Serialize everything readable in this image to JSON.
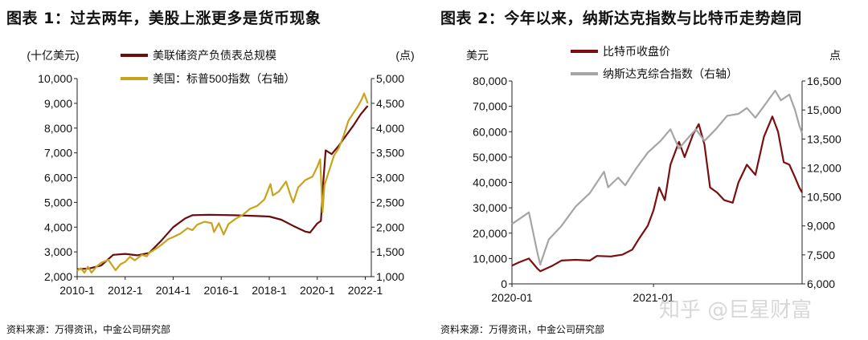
{
  "chart_data": [
    {
      "type": "line",
      "title": "图表 1：过去两年，美股上涨更多是货币现象",
      "source": "资料来源：万得资讯，中金公司研究部",
      "left_unit": "(十亿美元)",
      "right_unit": "(点)",
      "ylim_left": [
        2000,
        10000
      ],
      "yticks_left": [
        "2,000",
        "3,000",
        "4,000",
        "5,000",
        "6,000",
        "7,000",
        "8,000",
        "9,000",
        "10,000"
      ],
      "ylim_right": [
        1000,
        5000
      ],
      "yticks_right": [
        "1,000",
        "1,500",
        "2,000",
        "2,500",
        "3,000",
        "3,500",
        "4,000",
        "4,500",
        "5,000"
      ],
      "xlim": [
        2010.0,
        2022.25
      ],
      "xticks": [
        "2010-1",
        "2012-1",
        "2014-1",
        "2016-1",
        "2018-1",
        "2020-1",
        "2022-1"
      ],
      "series": [
        {
          "name": "美联储资产负债表总规模",
          "axis": "left",
          "color": "#6b0d0d",
          "points": [
            [
              2010.0,
              2300
            ],
            [
              2010.5,
              2330
            ],
            [
              2011.0,
              2450
            ],
            [
              2011.5,
              2880
            ],
            [
              2012.0,
              2920
            ],
            [
              2012.5,
              2860
            ],
            [
              2013.0,
              2960
            ],
            [
              2013.5,
              3450
            ],
            [
              2014.0,
              4000
            ],
            [
              2014.5,
              4350
            ],
            [
              2014.8,
              4480
            ],
            [
              2015.5,
              4500
            ],
            [
              2016.5,
              4480
            ],
            [
              2017.5,
              4450
            ],
            [
              2018.0,
              4430
            ],
            [
              2018.5,
              4300
            ],
            [
              2019.0,
              4050
            ],
            [
              2019.5,
              3820
            ],
            [
              2019.7,
              3780
            ],
            [
              2020.0,
              4150
            ],
            [
              2020.15,
              4250
            ],
            [
              2020.25,
              5800
            ],
            [
              2020.35,
              7100
            ],
            [
              2020.6,
              6950
            ],
            [
              2020.9,
              7300
            ],
            [
              2021.2,
              7700
            ],
            [
              2021.5,
              8100
            ],
            [
              2021.8,
              8550
            ],
            [
              2022.1,
              8900
            ]
          ]
        },
        {
          "name": "美国：标普500指数（右轴）",
          "axis": "right",
          "color": "#c9a31d",
          "points": [
            [
              2010.0,
              1120
            ],
            [
              2010.15,
              1170
            ],
            [
              2010.3,
              1080
            ],
            [
              2010.45,
              1200
            ],
            [
              2010.6,
              1080
            ],
            [
              2010.8,
              1200
            ],
            [
              2011.0,
              1280
            ],
            [
              2011.3,
              1340
            ],
            [
              2011.6,
              1130
            ],
            [
              2011.8,
              1250
            ],
            [
              2012.0,
              1300
            ],
            [
              2012.2,
              1400
            ],
            [
              2012.4,
              1330
            ],
            [
              2012.7,
              1440
            ],
            [
              2012.9,
              1410
            ],
            [
              2013.0,
              1480
            ],
            [
              2013.3,
              1570
            ],
            [
              2013.5,
              1640
            ],
            [
              2013.8,
              1760
            ],
            [
              2014.0,
              1800
            ],
            [
              2014.3,
              1870
            ],
            [
              2014.6,
              1980
            ],
            [
              2014.8,
              1940
            ],
            [
              2015.0,
              2050
            ],
            [
              2015.3,
              2110
            ],
            [
              2015.6,
              2080
            ],
            [
              2015.7,
              1900
            ],
            [
              2015.9,
              2080
            ],
            [
              2016.1,
              1850
            ],
            [
              2016.3,
              2060
            ],
            [
              2016.6,
              2170
            ],
            [
              2016.9,
              2250
            ],
            [
              2017.2,
              2370
            ],
            [
              2017.5,
              2430
            ],
            [
              2017.8,
              2560
            ],
            [
              2018.05,
              2870
            ],
            [
              2018.15,
              2640
            ],
            [
              2018.4,
              2720
            ],
            [
              2018.7,
              2920
            ],
            [
              2018.9,
              2620
            ],
            [
              2019.0,
              2500
            ],
            [
              2019.2,
              2800
            ],
            [
              2019.5,
              2950
            ],
            [
              2019.8,
              3020
            ],
            [
              2020.0,
              3220
            ],
            [
              2020.12,
              3370
            ],
            [
              2020.22,
              2300
            ],
            [
              2020.3,
              2850
            ],
            [
              2020.5,
              3150
            ],
            [
              2020.7,
              3450
            ],
            [
              2020.9,
              3600
            ],
            [
              2021.1,
              3850
            ],
            [
              2021.3,
              4150
            ],
            [
              2021.5,
              4300
            ],
            [
              2021.7,
              4450
            ],
            [
              2021.85,
              4580
            ],
            [
              2021.95,
              4700
            ],
            [
              2022.05,
              4570
            ],
            [
              2022.1,
              4500
            ]
          ]
        }
      ]
    },
    {
      "type": "line",
      "title": "图表 2：今年以来，纳斯达克指数与比特币走势趋同",
      "source": "资料来源：万得资讯，中金公司研究部",
      "left_unit": "美元",
      "right_unit": "点",
      "ylim_left": [
        0,
        80000
      ],
      "yticks_left": [
        "0",
        "10,000",
        "20,000",
        "30,000",
        "40,000",
        "50,000",
        "60,000",
        "70,000",
        "80,000"
      ],
      "ylim_right": [
        6000,
        16500
      ],
      "yticks_right": [
        "6,000",
        "7,500",
        "9,000",
        "10,500",
        "12,000",
        "13,500",
        "15,000",
        "16,500"
      ],
      "xlim": [
        2020.0,
        2022.05
      ],
      "xticks": [
        "2020-01",
        "2021-01"
      ],
      "series": [
        {
          "name": "比特币收盘价",
          "axis": "left",
          "color": "#7a0f0f",
          "points": [
            [
              2020.0,
              7200
            ],
            [
              2020.05,
              8500
            ],
            [
              2020.12,
              10000
            ],
            [
              2020.18,
              6000
            ],
            [
              2020.2,
              5000
            ],
            [
              2020.28,
              7000
            ],
            [
              2020.35,
              9200
            ],
            [
              2020.45,
              9500
            ],
            [
              2020.55,
              9200
            ],
            [
              2020.6,
              11000
            ],
            [
              2020.7,
              10800
            ],
            [
              2020.78,
              11500
            ],
            [
              2020.85,
              13500
            ],
            [
              2020.9,
              18000
            ],
            [
              2020.96,
              23000
            ],
            [
              2021.0,
              29000
            ],
            [
              2021.04,
              38000
            ],
            [
              2021.08,
              33000
            ],
            [
              2021.12,
              47000
            ],
            [
              2021.18,
              56000
            ],
            [
              2021.22,
              50000
            ],
            [
              2021.28,
              59000
            ],
            [
              2021.32,
              63000
            ],
            [
              2021.36,
              55000
            ],
            [
              2021.4,
              38000
            ],
            [
              2021.45,
              36000
            ],
            [
              2021.5,
              33000
            ],
            [
              2021.56,
              32000
            ],
            [
              2021.6,
              40000
            ],
            [
              2021.66,
              47000
            ],
            [
              2021.72,
              43000
            ],
            [
              2021.78,
              58000
            ],
            [
              2021.84,
              66000
            ],
            [
              2021.88,
              60000
            ],
            [
              2021.92,
              48000
            ],
            [
              2021.96,
              47000
            ],
            [
              2022.0,
              42000
            ],
            [
              2022.03,
              38000
            ],
            [
              2022.05,
              36000
            ]
          ]
        },
        {
          "name": "纳斯达克综合指数（右轴）",
          "axis": "right",
          "color": "#a5a5a5",
          "points": [
            [
              2020.0,
              9100
            ],
            [
              2020.08,
              9500
            ],
            [
              2020.12,
              9700
            ],
            [
              2020.18,
              7600
            ],
            [
              2020.2,
              7000
            ],
            [
              2020.26,
              8300
            ],
            [
              2020.35,
              9000
            ],
            [
              2020.45,
              10000
            ],
            [
              2020.55,
              10700
            ],
            [
              2020.65,
              11800
            ],
            [
              2020.68,
              11000
            ],
            [
              2020.75,
              11500
            ],
            [
              2020.8,
              11100
            ],
            [
              2020.88,
              12000
            ],
            [
              2020.96,
              12800
            ],
            [
              2021.05,
              13400
            ],
            [
              2021.12,
              14000
            ],
            [
              2021.18,
              13000
            ],
            [
              2021.25,
              13600
            ],
            [
              2021.3,
              14000
            ],
            [
              2021.36,
              13400
            ],
            [
              2021.44,
              14000
            ],
            [
              2021.52,
              14700
            ],
            [
              2021.6,
              14800
            ],
            [
              2021.66,
              15100
            ],
            [
              2021.72,
              14600
            ],
            [
              2021.8,
              15400
            ],
            [
              2021.86,
              16000
            ],
            [
              2021.9,
              15500
            ],
            [
              2021.96,
              15800
            ],
            [
              2022.0,
              15000
            ],
            [
              2022.03,
              14200
            ],
            [
              2022.05,
              13800
            ]
          ]
        }
      ]
    }
  ],
  "watermark": "知乎 @巨星财富"
}
